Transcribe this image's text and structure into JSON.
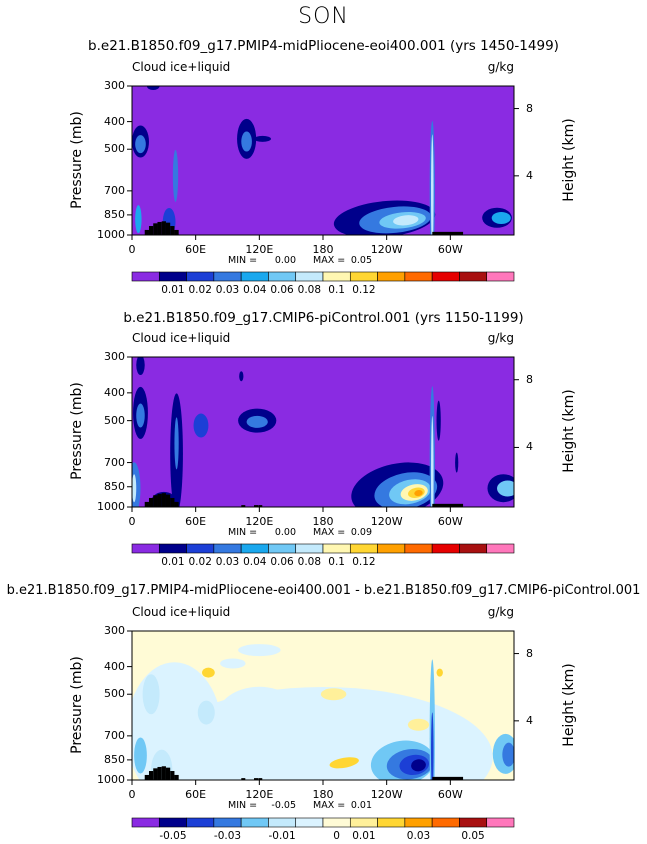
{
  "season": "SON",
  "colors": {
    "abs_scale": [
      "#8a2be2",
      "#00008b",
      "#1c3fd6",
      "#3579e0",
      "#1aa8ee",
      "#70c8f5",
      "#c4eafc",
      "#fff7b2",
      "#ffd633",
      "#ffa000",
      "#ff6a00",
      "#e60000",
      "#a81010",
      "#ff77bb"
    ],
    "diff_scale": [
      "#8a2be2",
      "#00008b",
      "#1c3fd6",
      "#3579e0",
      "#70c8f5",
      "#c4eafc",
      "#dbf3ff",
      "#fffbd6",
      "#fff09a",
      "#ffd633",
      "#ffa000",
      "#ff6a00",
      "#a81010",
      "#ff77bb"
    ],
    "topography": "#000000"
  },
  "panels": [
    {
      "title": "b.e21.B1850.f09_g17.PMIP4-midPliocene-eoi400.001 (yrs 1450-1499)",
      "var_label": "Cloud ice+liquid",
      "units": "g/kg",
      "min_label": "MIN =",
      "min_value": "0.00",
      "max_label": "MAX =",
      "max_value": "0.05",
      "colorbar_labels": [
        "0.01",
        "0.02",
        "0.03",
        "0.04",
        "0.06",
        "0.08",
        "0.1",
        "0.12"
      ]
    },
    {
      "title": "b.e21.B1850.f09_g17.CMIP6-piControl.001 (yrs 1150-1199)",
      "var_label": "Cloud ice+liquid",
      "units": "g/kg",
      "min_label": "MIN =",
      "min_value": "0.00",
      "max_label": "MAX =",
      "max_value": "0.09",
      "colorbar_labels": [
        "0.01",
        "0.02",
        "0.03",
        "0.04",
        "0.06",
        "0.08",
        "0.1",
        "0.12"
      ]
    },
    {
      "title": "b.e21.B1850.f09_g17.PMIP4-midPliocene-eoi400.001 - b.e21.B1850.f09_g17.CMIP6-piControl.001",
      "var_label": "Cloud ice+liquid",
      "units": "g/kg",
      "min_label": "MIN =",
      "min_value": "-0.05",
      "max_label": "MAX =",
      "max_value": "0.01",
      "colorbar_labels": [
        "-0.05",
        "-0.03",
        "-0.01",
        "0",
        "0.01",
        "0.03",
        "0.05"
      ]
    }
  ],
  "chart_data": {
    "type": "heatmap",
    "title": "SON",
    "xlabel": "",
    "ylabel": "Pressure (mb)",
    "y2label": "Height (km)",
    "x_ticks": [
      "0",
      "60E",
      "120E",
      "180",
      "120W",
      "60W"
    ],
    "x_range": [
      0,
      360
    ],
    "y_ticks": [
      "300",
      "400",
      "500",
      "700",
      "850",
      "1000"
    ],
    "y_range_mb": [
      1000,
      300
    ],
    "y2_ticks": [
      "8",
      "4"
    ],
    "series": [
      {
        "name": "b.e21.B1850.f09_g17.PMIP4-midPliocene-eoi400.001 (yrs 1450-1499)",
        "min": 0.0,
        "max": 0.05
      },
      {
        "name": "b.e21.B1850.f09_g17.CMIP6-piControl.001 (yrs 1150-1199)",
        "min": 0.0,
        "max": 0.09
      },
      {
        "name": "difference",
        "min": -0.05,
        "max": 0.01
      }
    ]
  }
}
